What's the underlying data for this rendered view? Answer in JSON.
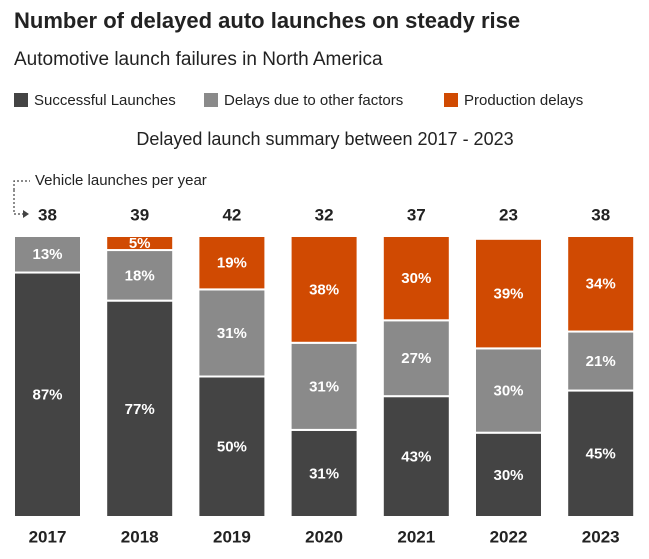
{
  "chart_data": {
    "type": "stacked_bar_percent",
    "title": "Number of delayed auto launches on steady rise",
    "subtitle": "Automotive launch failures in North America",
    "chart_subtitle": "Delayed launch summary between 2017 - 2023",
    "annotation": "Vehicle launches per year",
    "categories": [
      "2017",
      "2018",
      "2019",
      "2020",
      "2021",
      "2022",
      "2023"
    ],
    "totals": [
      38,
      39,
      42,
      32,
      37,
      23,
      38
    ],
    "series": [
      {
        "name": "Successful Launches",
        "color": "#444444",
        "values": [
          87,
          77,
          50,
          31,
          43,
          30,
          45
        ],
        "value_labels": [
          "87%",
          "77%",
          "50%",
          "31%",
          "43%",
          "30%",
          "45%"
        ]
      },
      {
        "name": "Delays due to other factors",
        "color": "#8a8a8a",
        "values": [
          13,
          18,
          31,
          31,
          27,
          30,
          21
        ],
        "value_labels": [
          "13%",
          "18%",
          "31%",
          "31%",
          "27%",
          "30%",
          "21%"
        ]
      },
      {
        "name": "Production delays",
        "color": "#d04a02",
        "values": [
          0,
          5,
          19,
          38,
          30,
          39,
          34
        ],
        "value_labels": [
          null,
          "5%",
          "19%",
          "38%",
          "30%",
          "39%",
          "34%"
        ]
      }
    ],
    "ylim": [
      0,
      100
    ]
  }
}
